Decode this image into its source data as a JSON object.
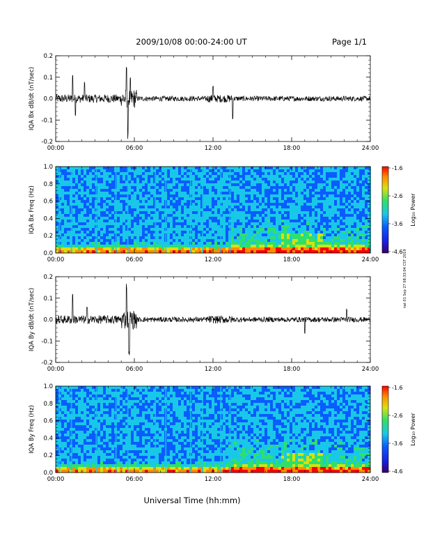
{
  "header": {
    "title": "2009/10/08   00:00-24:00 UT",
    "page": "Page 1/1"
  },
  "footer": {
    "xlabel": "Universal Time (hh:mm)",
    "side_note": "nat 01 Sep 27 08:33:04 CST 2019"
  },
  "colors": {
    "trace": "#000000",
    "colormap": [
      "#3a0060",
      "#1a1adf",
      "#0a5cff",
      "#19c8e8",
      "#2ee06a",
      "#d9e010",
      "#ff8c00",
      "#ff0000"
    ]
  },
  "colorbars": [
    {
      "label": "Log₁₀ Power",
      "ticks": [
        "-1.6",
        "-2.6",
        "-3.6",
        "-4.6"
      ],
      "range": [
        -4.6,
        -1.6
      ]
    },
    {
      "label": "Log₁₀ Power",
      "ticks": [
        "-1.6",
        "-2.6",
        "-3.6",
        "-4.6"
      ],
      "range": [
        -4.6,
        -1.6
      ]
    }
  ],
  "chart_data": [
    {
      "type": "line",
      "ylabel": "IQA Bx dB/dt (nT/sec)",
      "xlim": [
        0,
        24
      ],
      "ylim": [
        -0.2,
        0.2
      ],
      "x_ticks": [
        "00:00",
        "06:00",
        "12:00",
        "18:00",
        "24:00"
      ],
      "y_ticks": [
        "0.2",
        "0.1",
        "0.0",
        "-0.1",
        "-0.2"
      ],
      "spikes": [
        {
          "x": 1.3,
          "y": 0.12
        },
        {
          "x": 1.5,
          "y": -0.09
        },
        {
          "x": 2.2,
          "y": 0.08
        },
        {
          "x": 5.4,
          "y": 0.16
        },
        {
          "x": 5.5,
          "y": -0.19
        },
        {
          "x": 5.7,
          "y": 0.1
        },
        {
          "x": 12.0,
          "y": 0.06
        },
        {
          "x": 13.5,
          "y": -0.1
        }
      ]
    },
    {
      "type": "heatmap",
      "ylabel": "IQA Bx Freq (Hz)",
      "xlim": [
        0,
        24
      ],
      "ylim": [
        0.0,
        1.0
      ],
      "x_ticks": [
        "00:00",
        "06:00",
        "12:00",
        "18:00",
        "24:00"
      ],
      "y_ticks": [
        "1.0",
        "0.8",
        "0.6",
        "0.4",
        "0.2",
        "0.0"
      ],
      "vertical_streaks_hours": [
        0.3,
        1.2,
        3.1,
        4.6,
        5.5,
        7.6,
        8.4,
        10.3,
        11.2,
        12.6,
        13.3,
        24.0
      ]
    },
    {
      "type": "line",
      "ylabel": "IQA By dB/dt (nT/sec)",
      "xlim": [
        0,
        24
      ],
      "ylim": [
        -0.2,
        0.2
      ],
      "x_ticks": [
        "00:00",
        "06:00",
        "12:00",
        "18:00",
        "24:00"
      ],
      "y_ticks": [
        "0.2",
        "0.1",
        "0.0",
        "-0.1",
        "-0.2"
      ],
      "spikes": [
        {
          "x": 1.3,
          "y": 0.13
        },
        {
          "x": 2.4,
          "y": 0.06
        },
        {
          "x": 5.4,
          "y": 0.17
        },
        {
          "x": 5.6,
          "y": -0.17
        },
        {
          "x": 19.0,
          "y": -0.07
        },
        {
          "x": 22.2,
          "y": 0.05
        }
      ]
    },
    {
      "type": "heatmap",
      "ylabel": "IQA By Freq (Hz)",
      "xlim": [
        0,
        24
      ],
      "ylim": [
        0.0,
        1.0
      ],
      "x_ticks": [
        "00:00",
        "06:00",
        "12:00",
        "18:00",
        "24:00"
      ],
      "y_ticks": [
        "1.0",
        "0.8",
        "0.6",
        "0.4",
        "0.2",
        "0.0"
      ],
      "vertical_streaks_hours": [
        0.3,
        1.2,
        3.1,
        4.6,
        5.5,
        7.6,
        8.4,
        10.3,
        11.2,
        12.6,
        13.3
      ]
    }
  ]
}
